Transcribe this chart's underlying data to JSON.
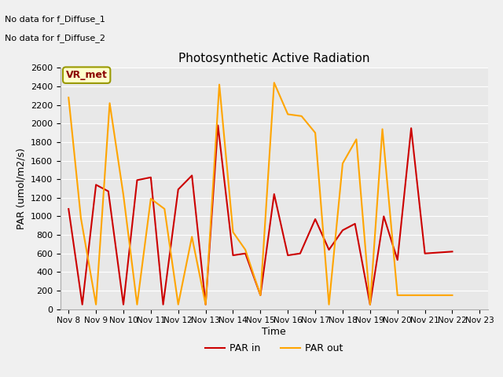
{
  "title": "Photosynthetic Active Radiation",
  "xlabel": "Time",
  "ylabel": "PAR (umol/m2/s)",
  "annotation1": "No data for f_Diffuse_1",
  "annotation2": "No data for f_Diffuse_2",
  "legend_label": "VR_met",
  "x_labels": [
    "Nov 8",
    "Nov 9",
    "Nov 10",
    "Nov 11",
    "Nov 12",
    "Nov 13",
    "Nov 14",
    "Nov 15",
    "Nov 16",
    "Nov 17",
    "Nov 18",
    "Nov 19",
    "Nov 20",
    "Nov 21",
    "Nov 22",
    "Nov 23"
  ],
  "par_in_x": [
    0,
    0.5,
    1,
    1.45,
    2,
    2.5,
    3,
    3.45,
    4,
    4.5,
    5,
    5.45,
    6,
    6.45,
    7,
    7.5,
    8,
    8.45,
    9,
    9.5,
    10,
    10.45,
    11,
    11.5,
    12,
    12.5,
    13,
    14
  ],
  "par_in_y": [
    1080,
    50,
    1340,
    1270,
    50,
    1390,
    1420,
    50,
    1290,
    1440,
    50,
    1980,
    580,
    600,
    150,
    1240,
    580,
    600,
    970,
    640,
    850,
    920,
    50,
    1000,
    530,
    1950,
    600,
    620
  ],
  "par_out_x": [
    0,
    0.45,
    1,
    1.5,
    2,
    2.5,
    3,
    3.5,
    4,
    4.5,
    5,
    5.5,
    6,
    6.45,
    7,
    7.5,
    8,
    8.5,
    9,
    9.5,
    10,
    10.5,
    11,
    11.45,
    12,
    13,
    14
  ],
  "par_out_y": [
    2280,
    980,
    50,
    2220,
    1230,
    50,
    1190,
    1080,
    50,
    780,
    50,
    2420,
    830,
    640,
    150,
    2440,
    2100,
    2080,
    1900,
    50,
    1570,
    1830,
    50,
    1940,
    150,
    150,
    150
  ],
  "par_in_color": "#cc0000",
  "par_out_color": "#ffa500",
  "background_color": "#f0f0f0",
  "plot_bg_color": "#e8e8e8",
  "ylim": [
    0,
    2600
  ],
  "yticks": [
    0,
    200,
    400,
    600,
    800,
    1000,
    1200,
    1400,
    1600,
    1800,
    2000,
    2200,
    2400,
    2600
  ]
}
